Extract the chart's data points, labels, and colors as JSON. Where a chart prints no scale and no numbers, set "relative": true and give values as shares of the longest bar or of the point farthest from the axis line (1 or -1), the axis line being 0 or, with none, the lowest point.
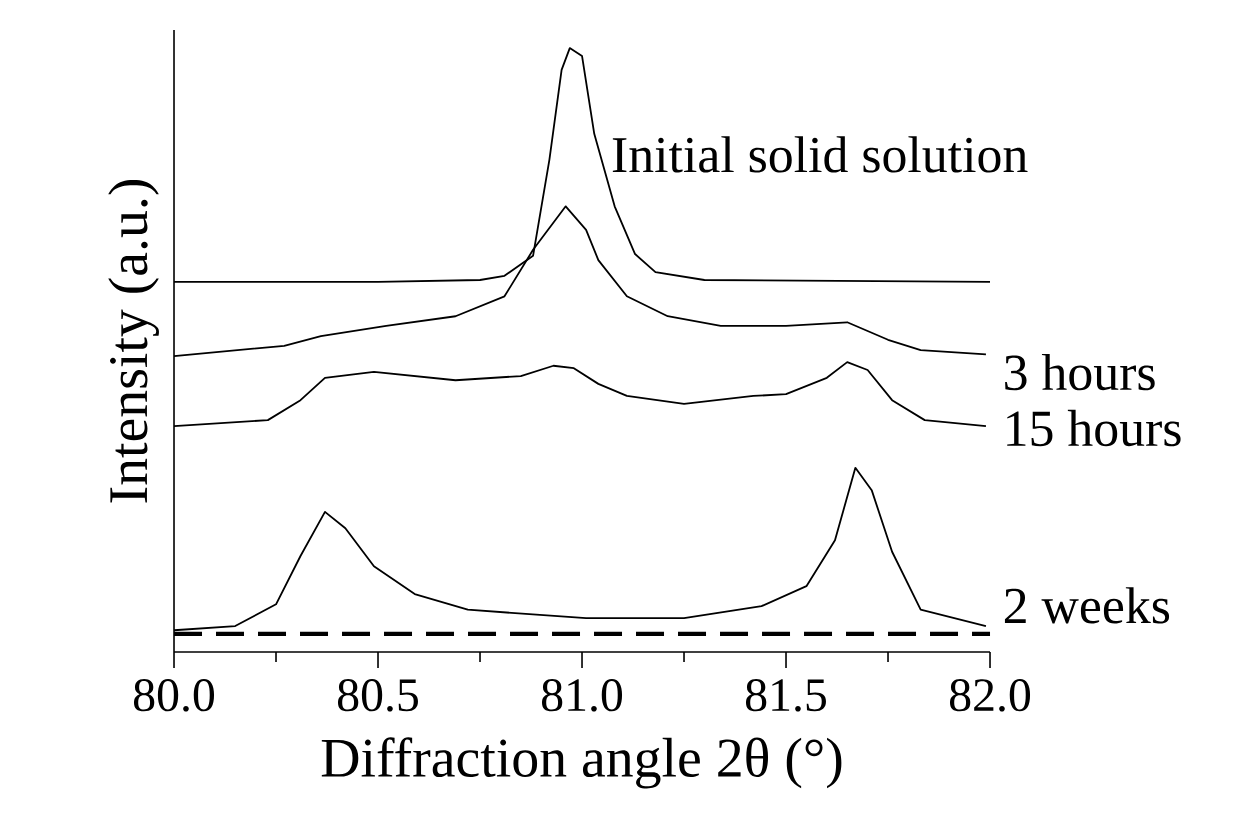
{
  "chart_data": {
    "type": "line",
    "xlabel": "Diffraction angle 2θ (°)",
    "ylabel": "Intensity (a.u.)",
    "relative": true,
    "xlim": [
      80.0,
      82.0
    ],
    "xticks": [
      {
        "value": 80.0,
        "label": "80.0"
      },
      {
        "value": 80.5,
        "label": "80.5"
      },
      {
        "value": 81.0,
        "label": "81.0"
      },
      {
        "value": 81.5,
        "label": "81.5"
      },
      {
        "value": 82.0,
        "label": "82.0"
      }
    ],
    "series": [
      {
        "name": "Initial solid solution",
        "color": "#000000",
        "x": [
          80.0,
          80.5,
          80.75,
          80.81,
          80.88,
          80.92,
          80.95,
          80.97,
          81.0,
          81.03,
          81.08,
          81.13,
          81.18,
          81.3,
          82.0
        ],
        "values": [
          0.613,
          0.613,
          0.616,
          0.623,
          0.656,
          0.815,
          0.964,
          1.0,
          0.987,
          0.858,
          0.738,
          0.659,
          0.629,
          0.616,
          0.613
        ]
      },
      {
        "name": "3 hours",
        "color": "#000000",
        "x": [
          80.0,
          80.27,
          80.36,
          80.52,
          80.69,
          80.81,
          80.88,
          80.96,
          81.01,
          81.04,
          81.11,
          81.21,
          81.34,
          81.5,
          81.65,
          81.75,
          81.83,
          81.99
        ],
        "values": [
          0.49,
          0.507,
          0.523,
          0.54,
          0.556,
          0.589,
          0.666,
          0.738,
          0.699,
          0.649,
          0.589,
          0.556,
          0.54,
          0.54,
          0.546,
          0.517,
          0.5,
          0.493
        ]
      },
      {
        "name": "15 hours",
        "color": "#000000",
        "x": [
          80.0,
          80.23,
          80.31,
          80.37,
          80.49,
          80.69,
          80.85,
          80.93,
          80.98,
          81.04,
          81.11,
          81.25,
          81.42,
          81.5,
          81.6,
          81.65,
          81.7,
          81.76,
          81.84,
          81.99
        ],
        "values": [
          0.374,
          0.384,
          0.417,
          0.454,
          0.464,
          0.45,
          0.457,
          0.474,
          0.47,
          0.444,
          0.424,
          0.411,
          0.424,
          0.427,
          0.454,
          0.48,
          0.467,
          0.417,
          0.384,
          0.374
        ]
      },
      {
        "name": "2 weeks",
        "color": "#000000",
        "x": [
          80.0,
          80.15,
          80.25,
          80.31,
          80.37,
          80.42,
          80.49,
          80.59,
          80.72,
          81.01,
          81.25,
          81.44,
          81.55,
          81.62,
          81.67,
          81.71,
          81.76,
          81.83,
          81.99
        ],
        "values": [
          0.036,
          0.043,
          0.079,
          0.159,
          0.232,
          0.205,
          0.142,
          0.096,
          0.07,
          0.056,
          0.056,
          0.076,
          0.109,
          0.185,
          0.305,
          0.268,
          0.166,
          0.07,
          0.043
        ]
      }
    ],
    "ref_lines": [
      {
        "axis": "y",
        "value": 0.03,
        "line_style": "dashed",
        "color": "#000000"
      }
    ]
  }
}
